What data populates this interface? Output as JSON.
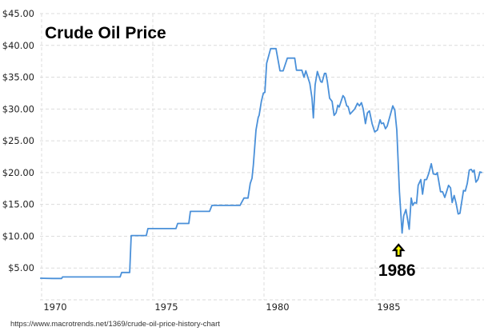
{
  "chart_data": {
    "type": "line",
    "title": "Crude Oil Price",
    "xlabel": "",
    "ylabel": "",
    "xlim": [
      1969.93,
      1989.85
    ],
    "ylim": [
      0,
      45
    ],
    "grid": true,
    "line_color": "#4a90d9",
    "x_ticks": [
      1970,
      1975,
      1980,
      1985
    ],
    "x_tick_labels": [
      "1970",
      "1975",
      "1980",
      "1985"
    ],
    "y_ticks": [
      5,
      10,
      15,
      20,
      25,
      30,
      35,
      40,
      45
    ],
    "y_tick_labels": [
      "$5.00",
      "$10.00",
      "$15.00",
      "$20.00",
      "$25.00",
      "$30.00",
      "$35.00",
      "$40.00",
      "$45.00"
    ],
    "series": [
      {
        "x": [
          1969.93,
          1970.5,
          1970.9,
          1970.94,
          1973.53,
          1973.6,
          1973.96,
          1974.03,
          1974.71,
          1974.78,
          1976.04,
          1976.12,
          1976.62,
          1976.69,
          1977.55,
          1977.66,
          1978.92,
          1979.1,
          1979.28,
          1979.38,
          1979.46,
          1979.52,
          1979.64,
          1979.74,
          1979.78,
          1979.88,
          1979.97,
          1980.04,
          1980.12,
          1980.3,
          1980.54,
          1980.72,
          1980.86,
          1981.05,
          1981.38,
          1981.46,
          1981.7,
          1981.8,
          1981.88,
          1982.06,
          1982.16,
          1982.22,
          1982.3,
          1982.4,
          1982.55,
          1982.61,
          1982.72,
          1982.78,
          1982.85,
          1982.95,
          1983.06,
          1983.15,
          1983.24,
          1983.32,
          1983.38,
          1983.55,
          1983.62,
          1983.72,
          1983.78,
          1983.87,
          1984.08,
          1984.2,
          1984.29,
          1984.38,
          1984.46,
          1984.56,
          1984.65,
          1984.74,
          1984.86,
          1984.98,
          1985.1,
          1985.22,
          1985.28,
          1985.37,
          1985.46,
          1985.54,
          1985.79,
          1985.88,
          1985.97,
          1986.09,
          1986.21,
          1986.28,
          1986.38,
          1986.45,
          1986.53,
          1986.62,
          1986.69,
          1986.77,
          1986.86,
          1986.93,
          1987.05,
          1987.13,
          1987.22,
          1987.31,
          1987.41,
          1987.52,
          1987.61,
          1987.73,
          1987.79,
          1987.94,
          1988.03,
          1988.13,
          1988.3,
          1988.39,
          1988.46,
          1988.55,
          1988.63,
          1988.73,
          1988.81,
          1988.97,
          1989.05,
          1989.14,
          1989.23,
          1989.32,
          1989.39,
          1989.45,
          1989.53,
          1989.62,
          1989.71,
          1989.81
        ],
        "y": [
          3.4,
          3.35,
          3.35,
          3.6,
          3.6,
          4.3,
          4.3,
          10.1,
          10.1,
          11.2,
          11.2,
          12.0,
          12.0,
          13.9,
          13.9,
          14.85,
          14.85,
          16.0,
          16.0,
          18.3,
          19.1,
          21.2,
          26.7,
          28.7,
          29.0,
          31.2,
          32.5,
          32.6,
          37.2,
          39.5,
          39.5,
          36.0,
          36.0,
          38.0,
          38.0,
          36.1,
          36.1,
          35.0,
          36.0,
          34.0,
          31.7,
          28.6,
          33.8,
          35.9,
          34.3,
          34.2,
          35.6,
          35.6,
          34.3,
          31.7,
          31.2,
          29.0,
          29.4,
          30.6,
          30.3,
          32.1,
          31.8,
          30.5,
          30.4,
          29.2,
          30.0,
          30.9,
          30.5,
          31.0,
          30.0,
          27.7,
          29.4,
          29.7,
          27.7,
          26.4,
          26.7,
          28.3,
          27.7,
          27.8,
          26.9,
          27.3,
          30.5,
          29.8,
          26.7,
          17.0,
          10.5,
          13.2,
          14.2,
          12.8,
          11.1,
          16.0,
          14.85,
          15.3,
          15.2,
          18.0,
          18.9,
          16.6,
          18.9,
          18.9,
          19.9,
          21.4,
          19.8,
          19.7,
          20.0,
          17.0,
          17.0,
          16.1,
          18.0,
          17.6,
          15.3,
          16.4,
          15.3,
          13.5,
          13.6,
          17.2,
          17.1,
          18.3,
          20.4,
          20.5,
          20.1,
          20.4,
          18.5,
          18.9,
          20.1,
          20.0
        ]
      }
    ],
    "annotations": [
      {
        "text": "1986",
        "x": 1986.05,
        "arrow": "up",
        "arrow_color": "#ffff00"
      }
    ]
  },
  "source": "https://www.macrotrends.net/1369/crude-oil-price-history-chart"
}
